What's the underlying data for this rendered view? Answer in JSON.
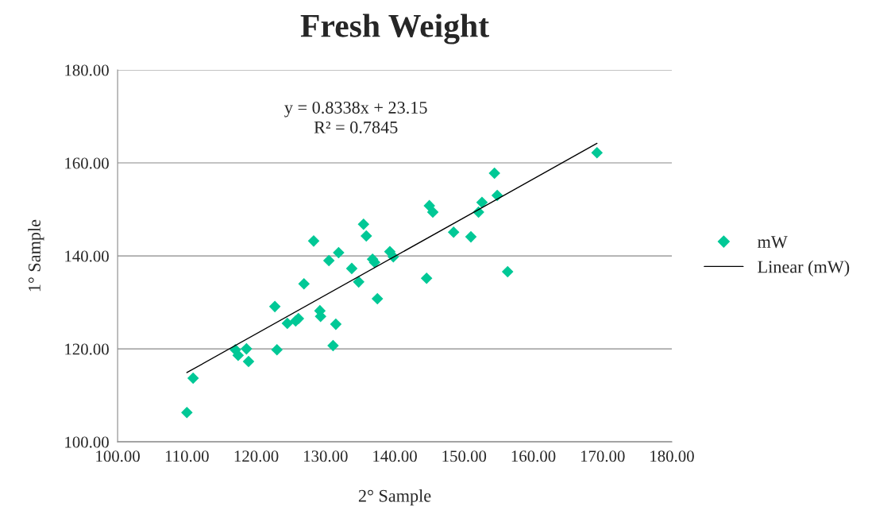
{
  "chart_data": {
    "type": "scatter",
    "title": "Fresh Weight",
    "xlabel": "2° Sample",
    "ylabel": "1° Sample",
    "annotations": [
      "y = 0.8338x + 23.15\nR² = 0.7845"
    ],
    "series": [
      {
        "name": "mW",
        "color": "#00c896",
        "marker": "diamond",
        "x": [
          110.0,
          110.9,
          117.0,
          117.4,
          118.6,
          118.9,
          122.7,
          123.0,
          124.5,
          125.7,
          126.1,
          126.9,
          128.3,
          129.2,
          129.3,
          130.5,
          131.1,
          131.5,
          131.9,
          133.8,
          134.8,
          135.5,
          135.9,
          136.8,
          137.1,
          137.5,
          139.3,
          139.8,
          144.6,
          145.0,
          145.5,
          148.5,
          151.0,
          152.1,
          152.6,
          154.4,
          154.8,
          156.3,
          169.2
        ],
        "values": [
          106.3,
          113.7,
          119.8,
          118.6,
          120.0,
          117.3,
          129.1,
          119.8,
          125.5,
          126.0,
          126.5,
          134.0,
          143.2,
          128.2,
          127.0,
          139.0,
          120.7,
          125.3,
          140.7,
          137.3,
          134.4,
          146.8,
          144.3,
          139.3,
          138.6,
          130.8,
          140.9,
          139.8,
          135.2,
          150.8,
          149.4,
          145.1,
          144.1,
          149.4,
          151.5,
          157.8,
          153.0,
          136.6,
          162.2
        ]
      },
      {
        "name": "Linear (mW)",
        "type": "line",
        "color": "#000000",
        "line_style": "solid",
        "x": [
          110.0,
          169.2
        ],
        "values": [
          114.9,
          164.2
        ]
      }
    ],
    "xlim": [
      100,
      180
    ],
    "ylim": [
      100,
      180
    ],
    "xticks": [
      {
        "value": 100,
        "label": "100.00"
      },
      {
        "value": 110,
        "label": "110.00"
      },
      {
        "value": 120,
        "label": "120.00"
      },
      {
        "value": 130,
        "label": "130.00"
      },
      {
        "value": 140,
        "label": "140.00"
      },
      {
        "value": 150,
        "label": "150.00"
      },
      {
        "value": 160,
        "label": "160.00"
      },
      {
        "value": 170,
        "label": "170.00"
      },
      {
        "value": 180,
        "label": "180.00"
      }
    ],
    "yticks": [
      {
        "value": 100,
        "label": "100.00"
      },
      {
        "value": 120,
        "label": "120.00"
      },
      {
        "value": 140,
        "label": "140.00"
      },
      {
        "value": 160,
        "label": "160.00"
      },
      {
        "value": 180,
        "label": "180.00"
      }
    ],
    "grid": "y",
    "legend": "right"
  }
}
